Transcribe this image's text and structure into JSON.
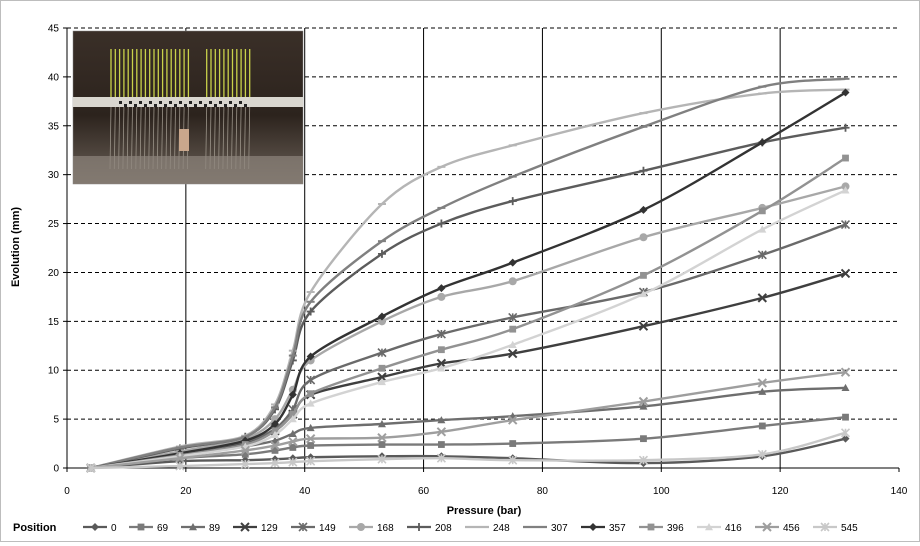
{
  "chart_data": {
    "type": "line",
    "xlabel": "Pressure (bar)",
    "ylabel": "Evolution  (mm)",
    "xlim": [
      0,
      140
    ],
    "ylim": [
      0,
      45
    ],
    "x_ticks": [
      "0",
      "20",
      "40",
      "60",
      "80",
      "100",
      "120",
      "140"
    ],
    "y_ticks": [
      "0",
      "5",
      "10",
      "15",
      "20",
      "25",
      "30",
      "35",
      "40",
      "45"
    ],
    "grid": true,
    "legend_title": "Position",
    "legend_placement": "bottom",
    "inset_photo": "experimental setup photo with vertical rods above a checkered ruler bar",
    "series": [
      {
        "name": "0",
        "color": "#5a5a5a",
        "marker": "diamond",
        "x": [
          4,
          19,
          30,
          35,
          38,
          41,
          53,
          63,
          75,
          97,
          117,
          131
        ],
        "y": [
          0,
          0.7,
          0.8,
          0.9,
          1.0,
          1.1,
          1.2,
          1.2,
          1.0,
          0.5,
          1.2,
          3.0
        ]
      },
      {
        "name": "69",
        "color": "#7a7a7a",
        "marker": "square",
        "x": [
          4,
          19,
          30,
          35,
          38,
          41,
          53,
          63,
          75,
          97,
          117,
          131
        ],
        "y": [
          0,
          1.0,
          1.4,
          1.8,
          2.1,
          2.3,
          2.4,
          2.4,
          2.5,
          3.0,
          4.3,
          5.2
        ]
      },
      {
        "name": "89",
        "color": "#6e6e6e",
        "marker": "triangle",
        "x": [
          4,
          19,
          30,
          35,
          38,
          41,
          53,
          63,
          75,
          97,
          117,
          131
        ],
        "y": [
          0,
          1.2,
          2.2,
          2.8,
          3.5,
          4.1,
          4.5,
          4.9,
          5.3,
          6.3,
          7.8,
          8.2
        ]
      },
      {
        "name": "129",
        "color": "#3f3f3f",
        "marker": "x",
        "x": [
          4,
          19,
          30,
          35,
          38,
          41,
          53,
          63,
          75,
          97,
          117,
          131
        ],
        "y": [
          0,
          1.4,
          2.6,
          3.8,
          5.5,
          7.5,
          9.3,
          10.7,
          11.7,
          14.5,
          17.4,
          19.9
        ]
      },
      {
        "name": "149",
        "color": "#6a6a6a",
        "marker": "asterisk",
        "x": [
          4,
          19,
          30,
          35,
          38,
          41,
          53,
          63,
          75,
          97,
          117,
          131
        ],
        "y": [
          0,
          1.5,
          2.7,
          4.0,
          6.0,
          9.0,
          11.8,
          13.7,
          15.4,
          18.0,
          21.8,
          24.9
        ]
      },
      {
        "name": "168",
        "color": "#a8a8a8",
        "marker": "circle",
        "x": [
          4,
          19,
          30,
          35,
          38,
          41,
          53,
          63,
          75,
          97,
          117,
          131
        ],
        "y": [
          0,
          1.7,
          3.0,
          5.0,
          8.0,
          11.0,
          15.0,
          17.5,
          19.1,
          23.6,
          26.6,
          28.8
        ]
      },
      {
        "name": "208",
        "color": "#5c5c5c",
        "marker": "plus",
        "x": [
          4,
          19,
          30,
          35,
          38,
          41,
          53,
          63,
          75,
          97,
          117,
          131
        ],
        "y": [
          0,
          2.0,
          3.2,
          6.0,
          11.0,
          16.0,
          21.9,
          25.0,
          27.3,
          30.4,
          33.3,
          34.8
        ]
      },
      {
        "name": "248",
        "color": "#b5b5b5",
        "marker": "dash",
        "x": [
          4,
          19,
          30,
          35,
          38,
          41,
          53,
          63,
          75,
          97,
          117,
          131
        ],
        "y": [
          0,
          2.2,
          3.3,
          6.5,
          12.0,
          18.0,
          27.0,
          30.8,
          33.0,
          36.3,
          38.3,
          38.7
        ]
      },
      {
        "name": "307",
        "color": "#808080",
        "marker": "dash",
        "x": [
          4,
          19,
          30,
          35,
          38,
          41,
          53,
          63,
          75,
          97,
          117,
          131
        ],
        "y": [
          0,
          2.1,
          3.2,
          6.2,
          11.5,
          17.0,
          23.2,
          26.6,
          29.8,
          34.9,
          39.0,
          39.8
        ]
      },
      {
        "name": "357",
        "color": "#333333",
        "marker": "diamond",
        "x": [
          4,
          19,
          30,
          35,
          38,
          41,
          53,
          63,
          75,
          97,
          117,
          131
        ],
        "y": [
          0,
          1.5,
          2.8,
          4.5,
          7.5,
          11.4,
          15.5,
          18.4,
          21.0,
          26.4,
          33.3,
          38.4
        ]
      },
      {
        "name": "396",
        "color": "#929292",
        "marker": "square",
        "x": [
          4,
          19,
          30,
          35,
          38,
          41,
          53,
          63,
          75,
          97,
          117,
          131
        ],
        "y": [
          0,
          1.3,
          2.4,
          3.8,
          5.5,
          7.6,
          10.2,
          12.1,
          14.2,
          19.7,
          26.3,
          31.7
        ]
      },
      {
        "name": "416",
        "color": "#d3d3d3",
        "marker": "triangle",
        "x": [
          4,
          19,
          30,
          35,
          38,
          41,
          53,
          63,
          75,
          97,
          117,
          131
        ],
        "y": [
          0,
          1.2,
          2.2,
          3.4,
          5.0,
          6.6,
          8.8,
          10.2,
          12.6,
          17.8,
          24.4,
          28.4
        ]
      },
      {
        "name": "456",
        "color": "#9e9e9e",
        "marker": "x",
        "x": [
          4,
          19,
          30,
          35,
          38,
          41,
          53,
          63,
          75,
          97,
          117,
          131
        ],
        "y": [
          0,
          1.0,
          1.8,
          2.3,
          2.7,
          3.0,
          3.1,
          3.7,
          4.9,
          6.8,
          8.7,
          9.8
        ]
      },
      {
        "name": "545",
        "color": "#c8c8c8",
        "marker": "asterisk",
        "x": [
          4,
          19,
          30,
          35,
          38,
          41,
          53,
          63,
          75,
          97,
          117,
          131
        ],
        "y": [
          0,
          0.2,
          0.4,
          0.5,
          0.6,
          0.7,
          0.9,
          1.0,
          0.8,
          0.8,
          1.4,
          3.6
        ]
      }
    ]
  }
}
